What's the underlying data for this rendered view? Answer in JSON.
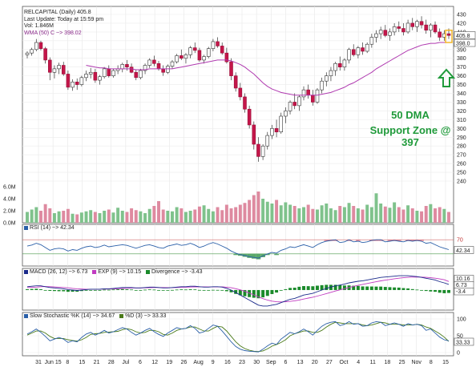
{
  "chart_data": {
    "type": "candlestick",
    "symbol_header": "RELCAPITAL (Daily) 405.8",
    "last_update": "Last Update: Today at 15:59 pm",
    "volume_header": "Vol: 1.846M",
    "wma_header": "WMA (50) C ~> 398.02",
    "annotation": [
      "50 DMA",
      "Support Zone @ 397"
    ],
    "price_axis": {
      "min": 240,
      "max": 430,
      "ticks": [
        430,
        420,
        410,
        400,
        390,
        380,
        370,
        360,
        350,
        340,
        330,
        320,
        310,
        300,
        290,
        280,
        270,
        260,
        250,
        240
      ]
    },
    "price_badges": [
      "405.8",
      "398.0"
    ],
    "volume_axis": {
      "max": 6.0,
      "ticks": [
        "6.0M",
        "4.0M",
        "2.0M",
        "0.0M"
      ]
    },
    "x_labels": [
      "31",
      "Jun 15",
      "8",
      "15",
      "21",
      "28",
      "Jul",
      "6",
      "12",
      "19",
      "26",
      "Aug",
      "9",
      "16",
      "23",
      "30",
      "Sep",
      "6",
      "13",
      "20",
      "27",
      "Oct",
      "4",
      "11",
      "18",
      "25",
      "Nov",
      "8",
      "15"
    ],
    "candles": [
      [
        384,
        388,
        380,
        386
      ],
      [
        386,
        392,
        383,
        390
      ],
      [
        390,
        402,
        388,
        398
      ],
      [
        398,
        400,
        389,
        391
      ],
      [
        391,
        393,
        374,
        378
      ],
      [
        378,
        381,
        355,
        364
      ],
      [
        364,
        372,
        357,
        368
      ],
      [
        368,
        375,
        362,
        372
      ],
      [
        372,
        376,
        360,
        362
      ],
      [
        362,
        366,
        344,
        347
      ],
      [
        347,
        356,
        343,
        353
      ],
      [
        353,
        357,
        344,
        350
      ],
      [
        350,
        360,
        348,
        358
      ],
      [
        358,
        366,
        354,
        362
      ],
      [
        362,
        369,
        357,
        364
      ],
      [
        364,
        368,
        352,
        355
      ],
      [
        355,
        361,
        350,
        359
      ],
      [
        359,
        370,
        357,
        368
      ],
      [
        368,
        372,
        358,
        360
      ],
      [
        360,
        368,
        358,
        366
      ],
      [
        366,
        372,
        362,
        368
      ],
      [
        368,
        375,
        364,
        373
      ],
      [
        373,
        378,
        366,
        370
      ],
      [
        370,
        374,
        363,
        364
      ],
      [
        364,
        367,
        355,
        358
      ],
      [
        358,
        368,
        356,
        366
      ],
      [
        366,
        374,
        362,
        372
      ],
      [
        372,
        380,
        369,
        378
      ],
      [
        378,
        383,
        371,
        374
      ],
      [
        374,
        377,
        366,
        368
      ],
      [
        368,
        372,
        360,
        364
      ],
      [
        364,
        373,
        362,
        371
      ],
      [
        371,
        378,
        368,
        376
      ],
      [
        376,
        385,
        374,
        383
      ],
      [
        383,
        390,
        378,
        380
      ],
      [
        380,
        386,
        374,
        384
      ],
      [
        384,
        394,
        380,
        392
      ],
      [
        392,
        398,
        386,
        389
      ],
      [
        389,
        392,
        376,
        378
      ],
      [
        378,
        384,
        374,
        382
      ],
      [
        382,
        393,
        380,
        391
      ],
      [
        391,
        402,
        388,
        399
      ],
      [
        399,
        404,
        392,
        394
      ],
      [
        394,
        398,
        384,
        386
      ],
      [
        386,
        392,
        374,
        376
      ],
      [
        376,
        380,
        355,
        360
      ],
      [
        360,
        364,
        342,
        346
      ],
      [
        346,
        352,
        332,
        336
      ],
      [
        336,
        340,
        318,
        322
      ],
      [
        322,
        326,
        300,
        304
      ],
      [
        304,
        308,
        276,
        282
      ],
      [
        282,
        290,
        262,
        268
      ],
      [
        268,
        282,
        264,
        280
      ],
      [
        280,
        296,
        276,
        292
      ],
      [
        292,
        304,
        288,
        300
      ],
      [
        300,
        310,
        290,
        296
      ],
      [
        296,
        318,
        294,
        314
      ],
      [
        314,
        324,
        306,
        320
      ],
      [
        320,
        332,
        316,
        330
      ],
      [
        330,
        340,
        322,
        326
      ],
      [
        326,
        338,
        320,
        336
      ],
      [
        336,
        348,
        332,
        344
      ],
      [
        344,
        350,
        334,
        338
      ],
      [
        338,
        344,
        326,
        330
      ],
      [
        330,
        346,
        328,
        344
      ],
      [
        344,
        358,
        340,
        354
      ],
      [
        354,
        364,
        348,
        360
      ],
      [
        360,
        370,
        354,
        366
      ],
      [
        366,
        376,
        360,
        374
      ],
      [
        374,
        382,
        366,
        370
      ],
      [
        370,
        380,
        366,
        378
      ],
      [
        378,
        392,
        374,
        390
      ],
      [
        390,
        396,
        382,
        384
      ],
      [
        384,
        394,
        380,
        392
      ],
      [
        392,
        398,
        384,
        388
      ],
      [
        388,
        398,
        386,
        396
      ],
      [
        396,
        408,
        392,
        404
      ],
      [
        404,
        412,
        398,
        408
      ],
      [
        408,
        416,
        402,
        412
      ],
      [
        412,
        418,
        404,
        406
      ],
      [
        406,
        414,
        400,
        410
      ],
      [
        410,
        420,
        406,
        416
      ],
      [
        416,
        422,
        410,
        414
      ],
      [
        414,
        420,
        406,
        410
      ],
      [
        410,
        424,
        408,
        420
      ],
      [
        420,
        426,
        412,
        416
      ],
      [
        416,
        424,
        410,
        422
      ],
      [
        422,
        428,
        414,
        418
      ],
      [
        418,
        424,
        408,
        412
      ],
      [
        412,
        420,
        404,
        418
      ],
      [
        418,
        422,
        408,
        410
      ],
      [
        410,
        414,
        400,
        404
      ],
      [
        404,
        412,
        400,
        408
      ],
      [
        408,
        414,
        402,
        406
      ]
    ],
    "wma": [
      null,
      null,
      null,
      null,
      null,
      null,
      null,
      null,
      null,
      null,
      null,
      null,
      null,
      372,
      371,
      370,
      369,
      369,
      368,
      368,
      368,
      368,
      368,
      368,
      367,
      367,
      367,
      368,
      368,
      368,
      368,
      368,
      368,
      369,
      370,
      371,
      372,
      373,
      374,
      375,
      376,
      377,
      378,
      378,
      378,
      377,
      375,
      373,
      370,
      366,
      362,
      357,
      352,
      348,
      345,
      343,
      341,
      340,
      339,
      338,
      338,
      338,
      338,
      338,
      338,
      339,
      340,
      341,
      343,
      345,
      347,
      350,
      352,
      355,
      358,
      361,
      364,
      368,
      371,
      374,
      377,
      380,
      383,
      386,
      389,
      391,
      393,
      395,
      396,
      397,
      397,
      398,
      398,
      398
    ],
    "volume": [
      1.8,
      2.2,
      2.6,
      2.0,
      3.1,
      2.4,
      1.6,
      1.9,
      2.0,
      2.3,
      1.5,
      1.4,
      1.7,
      1.9,
      2.1,
      1.8,
      1.6,
      2.0,
      2.2,
      1.7,
      2.5,
      2.0,
      1.8,
      2.4,
      2.1,
      1.9,
      1.6,
      2.3,
      2.8,
      3.6,
      2.2,
      2.0,
      1.9,
      2.6,
      2.4,
      1.8,
      2.0,
      2.2,
      2.7,
      2.9,
      2.3,
      1.9,
      2.6,
      2.1,
      3.0,
      2.4,
      2.6,
      3.0,
      3.3,
      3.8,
      4.6,
      5.2,
      4.0,
      3.5,
      3.2,
      3.8,
      2.9,
      3.4,
      3.0,
      2.8,
      2.4,
      2.6,
      3.0,
      2.3,
      2.2,
      2.9,
      3.2,
      2.4,
      2.1,
      2.8,
      2.6,
      3.3,
      2.8,
      2.4,
      2.2,
      3.0,
      2.6,
      4.9,
      3.2,
      2.7,
      2.5,
      3.4,
      2.6,
      2.2,
      2.9,
      2.4,
      2.0,
      1.9,
      2.8,
      3.1,
      2.4,
      2.6,
      2.3,
      1.8
    ],
    "rsi": {
      "title": "RSI (14) ~> 42.34",
      "value_badge": "42.34",
      "level_label": "70",
      "values": [
        52,
        55,
        60,
        56,
        48,
        40,
        44,
        46,
        44,
        38,
        42,
        40,
        46,
        50,
        52,
        48,
        50,
        55,
        50,
        52,
        54,
        56,
        54,
        50,
        46,
        50,
        54,
        56,
        52,
        48,
        46,
        52,
        55,
        58,
        54,
        56,
        60,
        55,
        48,
        52,
        58,
        62,
        58,
        52,
        46,
        38,
        32,
        28,
        25,
        22,
        20,
        18,
        24,
        30,
        34,
        32,
        40,
        44,
        50,
        48,
        52,
        56,
        52,
        48,
        56,
        62,
        66,
        68,
        70,
        62,
        64,
        70,
        64,
        66,
        62,
        64,
        68,
        70,
        70,
        64,
        66,
        68,
        66,
        64,
        68,
        66,
        68,
        66,
        60,
        62,
        56,
        50,
        46,
        42
      ]
    },
    "macd": {
      "title": "MACD (26, 12) ~> 6.73",
      "exp_title": "EXP (9) ~> 10.15",
      "div_title": "Divergence ~> -3.43",
      "badges": [
        "10.16",
        "6.73",
        "-3.4"
      ],
      "macd": [
        4,
        4.5,
        5,
        5,
        4,
        3,
        2.5,
        2,
        1.5,
        0.5,
        0,
        -0.5,
        0,
        0.5,
        1,
        1,
        1,
        1.5,
        1.5,
        2,
        2.5,
        3,
        3,
        3,
        2.5,
        2.5,
        3,
        3.5,
        3.5,
        3,
        2.5,
        2.5,
        3,
        3.5,
        4,
        4,
        4.5,
        4.5,
        4,
        3.5,
        3.5,
        4,
        4,
        3.5,
        2,
        0,
        -3,
        -6,
        -9,
        -12,
        -15,
        -18,
        -19,
        -19,
        -18,
        -17,
        -15,
        -13,
        -11,
        -10,
        -8,
        -6,
        -5,
        -4,
        -2,
        0,
        2,
        3.5,
        5,
        6,
        7,
        8.5,
        9.5,
        10.5,
        11,
        12,
        13,
        14,
        15,
        15.5,
        16,
        16.5,
        17,
        17,
        17,
        16.5,
        16,
        15,
        14,
        13,
        12,
        10,
        8.5,
        6.7
      ],
      "signal": [
        3,
        3.2,
        3.5,
        4,
        4.2,
        4,
        3.7,
        3.4,
        3,
        2.6,
        2,
        1.5,
        1.2,
        1,
        1,
        1,
        1,
        1.1,
        1.2,
        1.4,
        1.6,
        1.9,
        2.1,
        2.4,
        2.5,
        2.5,
        2.6,
        2.8,
        3,
        3,
        3,
        2.9,
        2.9,
        3,
        3.2,
        3.4,
        3.6,
        3.8,
        3.9,
        3.8,
        3.7,
        3.8,
        3.9,
        3.8,
        3.4,
        2.7,
        1.6,
        0.2,
        -1.6,
        -3.6,
        -5.8,
        -8.2,
        -10.3,
        -12,
        -13.2,
        -14,
        -14.2,
        -14,
        -13.5,
        -12.8,
        -11.9,
        -10.7,
        -9.6,
        -8.5,
        -7.2,
        -5.8,
        -4.2,
        -2.7,
        -1.2,
        0.2,
        1.6,
        3,
        4.4,
        5.6,
        6.7,
        7.8,
        8.8,
        9.9,
        10.9,
        11.8,
        12.6,
        13.4,
        14.1,
        14.7,
        15.1,
        15.4,
        15.5,
        15.4,
        15.1,
        14.7,
        14.1,
        13.2,
        12.3,
        10.15
      ]
    },
    "stoch": {
      "title": "Slow Stochastic %K (14) ~> 34.67",
      "d_title": "%D (3) ~> 33.33",
      "ticks": [
        "100",
        "50",
        "0"
      ],
      "badge": "33.33",
      "k": [
        55,
        62,
        70,
        60,
        48,
        35,
        40,
        45,
        40,
        30,
        35,
        32,
        45,
        55,
        60,
        52,
        58,
        66,
        58,
        62,
        68,
        74,
        70,
        60,
        52,
        58,
        66,
        72,
        62,
        54,
        48,
        58,
        66,
        74,
        70,
        72,
        80,
        72,
        58,
        62,
        72,
        82,
        78,
        64,
        48,
        32,
        18,
        10,
        6,
        4,
        3,
        2,
        10,
        20,
        28,
        24,
        40,
        50,
        60,
        56,
        62,
        70,
        62,
        52,
        66,
        78,
        86,
        90,
        92,
        80,
        84,
        92,
        84,
        86,
        78,
        80,
        88,
        92,
        90,
        80,
        84,
        88,
        84,
        78,
        86,
        82,
        84,
        80,
        66,
        70,
        58,
        46,
        38,
        34.67
      ],
      "d": [
        52,
        58,
        64,
        64,
        58,
        48,
        42,
        42,
        42,
        38,
        36,
        34,
        38,
        45,
        54,
        56,
        57,
        60,
        61,
        62,
        63,
        68,
        71,
        68,
        62,
        58,
        60,
        66,
        66,
        62,
        54,
        52,
        58,
        66,
        70,
        72,
        76,
        76,
        70,
        64,
        64,
        72,
        78,
        76,
        64,
        48,
        32,
        20,
        12,
        7,
        4,
        3,
        5,
        11,
        19,
        24,
        30,
        38,
        50,
        56,
        60,
        64,
        64,
        60,
        60,
        66,
        76,
        84,
        90,
        88,
        86,
        86,
        86,
        86,
        82,
        80,
        82,
        86,
        90,
        88,
        84,
        84,
        84,
        82,
        82,
        82,
        84,
        82,
        76,
        72,
        64,
        56,
        46,
        33.33
      ]
    }
  }
}
